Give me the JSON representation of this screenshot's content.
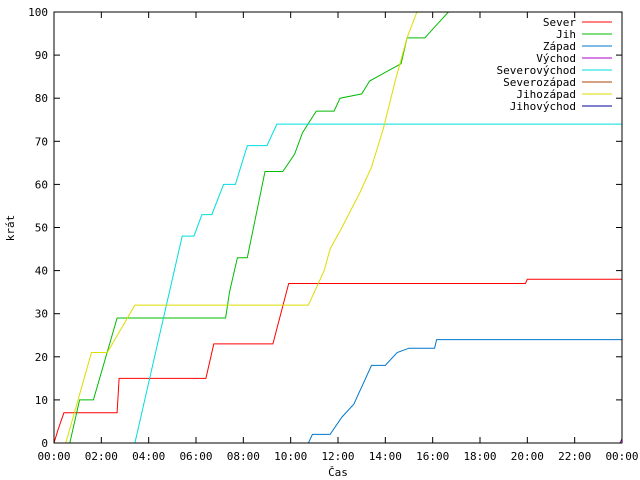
{
  "chart_data": {
    "type": "line",
    "title": "",
    "xlabel": "Čas",
    "ylabel": "krát",
    "xlim": [
      "00:00",
      "24:00"
    ],
    "ylim": [
      0,
      100
    ],
    "x_tick_labels": [
      "00:00",
      "02:00",
      "04:00",
      "06:00",
      "08:00",
      "10:00",
      "12:00",
      "14:00",
      "16:00",
      "18:00",
      "20:00",
      "22:00",
      "00:00"
    ],
    "y_tick_labels": [
      "0",
      "10",
      "20",
      "30",
      "40",
      "50",
      "60",
      "70",
      "80",
      "90",
      "100"
    ],
    "grid": false,
    "legend_position": "top-right",
    "series": [
      {
        "name": "Sever",
        "color": "#ff0000",
        "points": [
          [
            "00:00",
            0
          ],
          [
            "00:10",
            3
          ],
          [
            "00:25",
            7
          ],
          [
            "02:40",
            7
          ],
          [
            "02:45",
            15
          ],
          [
            "06:25",
            15
          ],
          [
            "06:45",
            23
          ],
          [
            "09:15",
            23
          ],
          [
            "09:55",
            37
          ],
          [
            "19:55",
            37
          ],
          [
            "20:00",
            38
          ],
          [
            "24:00",
            38
          ]
        ]
      },
      {
        "name": "Jih",
        "color": "#00bb00",
        "points": [
          [
            "00:40",
            0
          ],
          [
            "01:05",
            10
          ],
          [
            "01:40",
            10
          ],
          [
            "02:40",
            29
          ],
          [
            "07:15",
            29
          ],
          [
            "07:25",
            35
          ],
          [
            "07:45",
            43
          ],
          [
            "08:10",
            43
          ],
          [
            "08:55",
            63
          ],
          [
            "09:40",
            63
          ],
          [
            "10:10",
            67
          ],
          [
            "10:30",
            72
          ],
          [
            "11:05",
            77
          ],
          [
            "11:50",
            77
          ],
          [
            "12:05",
            80
          ],
          [
            "13:00",
            81
          ],
          [
            "13:20",
            84
          ],
          [
            "14:40",
            88
          ],
          [
            "14:55",
            94
          ],
          [
            "15:40",
            94
          ],
          [
            "16:10",
            97
          ],
          [
            "16:40",
            100
          ]
        ]
      },
      {
        "name": "Západ",
        "color": "#0077cc",
        "points": [
          [
            "10:45",
            0
          ],
          [
            "10:55",
            2
          ],
          [
            "11:40",
            2
          ],
          [
            "12:10",
            6
          ],
          [
            "12:40",
            9
          ],
          [
            "13:10",
            15
          ],
          [
            "13:25",
            18
          ],
          [
            "14:00",
            18
          ],
          [
            "14:30",
            21
          ],
          [
            "15:00",
            22
          ],
          [
            "16:05",
            22
          ],
          [
            "16:10",
            24
          ],
          [
            "24:00",
            24
          ]
        ]
      },
      {
        "name": "Východ",
        "color": "#aa00cc",
        "points": [
          [
            "23:55",
            0
          ],
          [
            "24:00",
            1
          ]
        ]
      },
      {
        "name": "Severovýchod",
        "color": "#00dddd",
        "points": [
          [
            "03:25",
            0
          ],
          [
            "03:55",
            12
          ],
          [
            "04:45",
            32
          ],
          [
            "05:25",
            48
          ],
          [
            "05:55",
            48
          ],
          [
            "06:15",
            53
          ],
          [
            "06:40",
            53
          ],
          [
            "07:10",
            60
          ],
          [
            "07:40",
            60
          ],
          [
            "08:10",
            69
          ],
          [
            "09:00",
            69
          ],
          [
            "09:25",
            74
          ],
          [
            "24:00",
            74
          ]
        ]
      },
      {
        "name": "Severozápad",
        "color": "#aa4400",
        "points": []
      },
      {
        "name": "Jihozápad",
        "color": "#dddd00",
        "points": [
          [
            "00:30",
            0
          ],
          [
            "01:35",
            21
          ],
          [
            "02:15",
            21
          ],
          [
            "03:25",
            32
          ],
          [
            "10:45",
            32
          ],
          [
            "11:25",
            40
          ],
          [
            "11:40",
            45
          ],
          [
            "12:10",
            50
          ],
          [
            "12:55",
            58
          ],
          [
            "13:25",
            64
          ],
          [
            "13:55",
            73
          ],
          [
            "14:25",
            84
          ],
          [
            "14:55",
            94
          ],
          [
            "15:20",
            100
          ]
        ]
      },
      {
        "name": "Jihovýchod",
        "color": "#000099",
        "points": []
      }
    ]
  }
}
